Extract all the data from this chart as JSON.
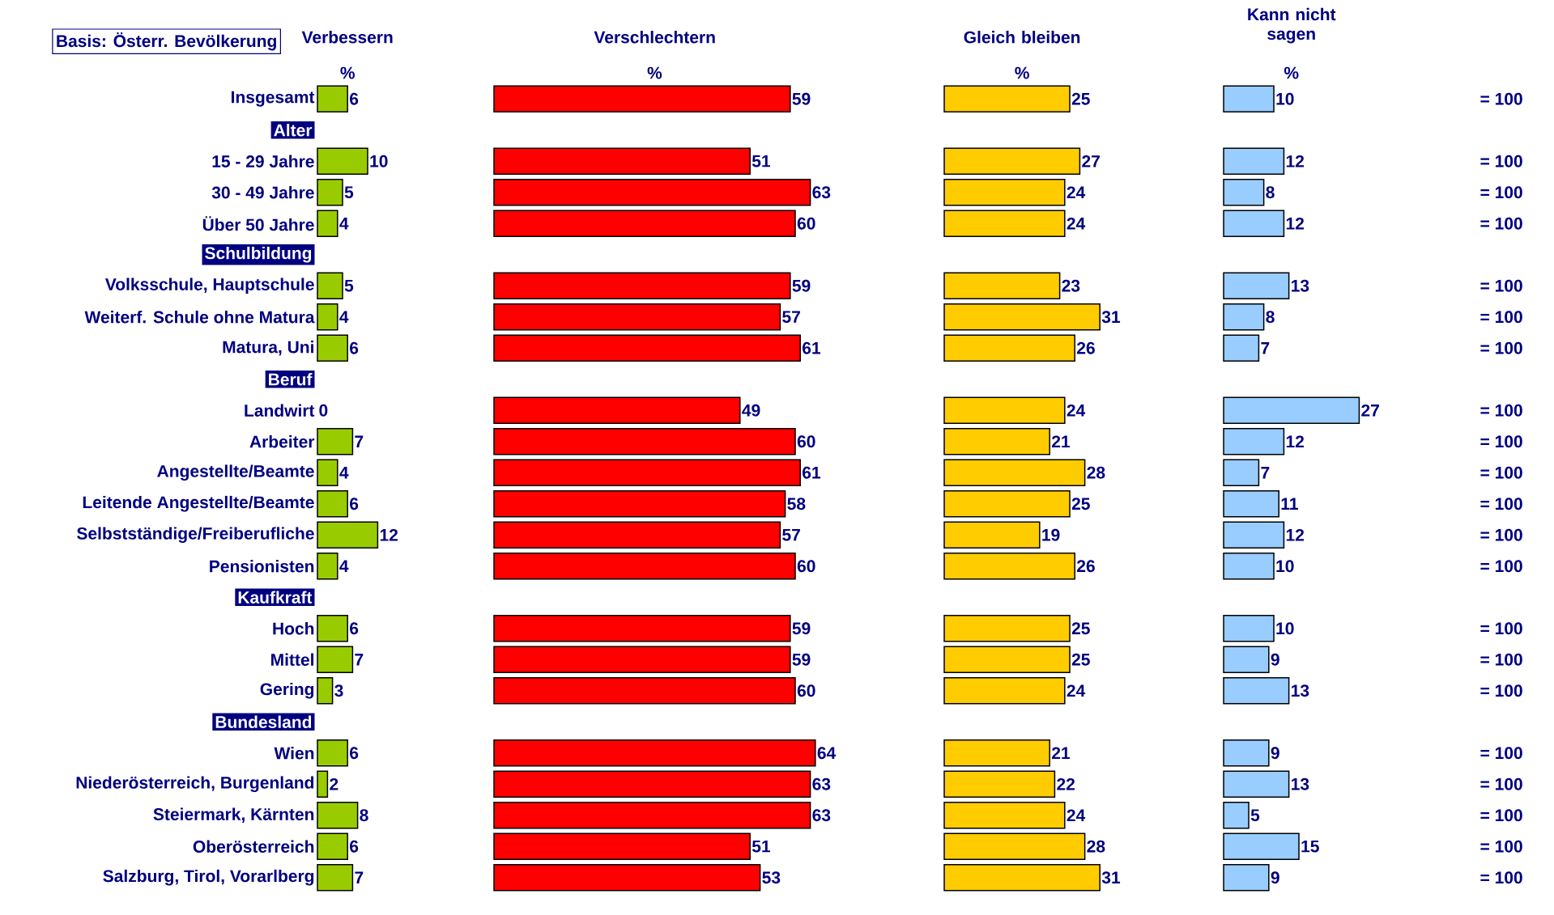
{
  "chart_data": [
    {
      "type": "bar",
      "orientation": "horizontal",
      "title": "Verbessern",
      "xlabel": "%",
      "color": "#99cc00",
      "data_labels": true,
      "tick_labels": "y",
      "annotations": [
        "Basis: Österr. Bevölkerung",
        "= 100",
        "= 100",
        "= 100",
        "= 100",
        "= 100",
        "= 100",
        "= 100",
        "= 100",
        "= 100",
        "= 100",
        "= 100",
        "= 100",
        "= 100",
        "= 100",
        "= 100",
        "= 100",
        "= 100",
        "= 100",
        "= 100",
        "= 100",
        "= 100"
      ],
      "categories": [
        "Insgesamt",
        "Alter",
        "15 - 29 Jahre",
        "30 - 49 Jahre",
        "Über 50 Jahre",
        "Schulbildung",
        "Volksschule, Hauptschule",
        "Weiterf. Schule ohne Matura",
        "Matura, Uni",
        "Beruf",
        "Landwirt",
        "Arbeiter",
        "Angestellte/Beamte",
        "Leitende Angestellte/Beamte",
        "Selbstständige/Freiberufliche",
        "Pensionisten",
        "Kaufkraft",
        "Hoch",
        "Mittel",
        "Gering",
        "Bundesland",
        "Wien",
        "Niederösterreich, Burgenland",
        "Steiermark, Kärnten",
        "Oberösterreich",
        "Salzburg, Tirol, Vorarlberg"
      ],
      "values": [
        6,
        null,
        10,
        5,
        4,
        null,
        5,
        4,
        6,
        null,
        0,
        7,
        4,
        6,
        12,
        4,
        null,
        6,
        7,
        3,
        null,
        6,
        2,
        8,
        6,
        7
      ]
    },
    {
      "type": "bar",
      "orientation": "horizontal",
      "title": "Verschlechtern",
      "xlabel": "%",
      "color": "#ff0000",
      "data_labels": true,
      "tick_labels": false,
      "categories": [
        null,
        null,
        null,
        null,
        null,
        null,
        null,
        null,
        null,
        null,
        null,
        null,
        null,
        null,
        null,
        null,
        null,
        null,
        null,
        null,
        null,
        null,
        null,
        null,
        null,
        null
      ],
      "values": [
        59,
        null,
        51,
        63,
        60,
        null,
        59,
        57,
        61,
        null,
        49,
        60,
        61,
        58,
        57,
        60,
        null,
        59,
        59,
        60,
        null,
        64,
        63,
        63,
        51,
        53
      ]
    },
    {
      "type": "bar",
      "orientation": "horizontal",
      "title": "Gleich bleiben",
      "xlabel": "%",
      "color": "#ffcc00",
      "data_labels": true,
      "tick_labels": false,
      "categories": [
        null,
        null,
        null,
        null,
        null,
        null,
        null,
        null,
        null,
        null,
        null,
        null,
        null,
        null,
        null,
        null,
        null,
        null,
        null,
        null,
        null,
        null,
        null,
        null,
        null,
        null
      ],
      "values": [
        25,
        null,
        27,
        24,
        24,
        null,
        23,
        31,
        26,
        null,
        24,
        21,
        28,
        25,
        19,
        26,
        null,
        25,
        25,
        24,
        null,
        21,
        22,
        24,
        28,
        31
      ]
    },
    {
      "type": "bar",
      "orientation": "horizontal",
      "title": "Kann nicht sagen",
      "xlabel": "%",
      "color": "#99ccff",
      "data_labels": true,
      "tick_labels": false,
      "categories": [
        null,
        null,
        null,
        null,
        null,
        null,
        null,
        null,
        null,
        null,
        null,
        null,
        null,
        null,
        null,
        null,
        null,
        null,
        null,
        null,
        null,
        null,
        null,
        null,
        null,
        null
      ],
      "values": [
        10,
        null,
        12,
        8,
        12,
        null,
        13,
        8,
        7,
        null,
        27,
        12,
        7,
        11,
        12,
        10,
        null,
        10,
        9,
        13,
        null,
        9,
        13,
        5,
        15,
        9
      ]
    }
  ]
}
